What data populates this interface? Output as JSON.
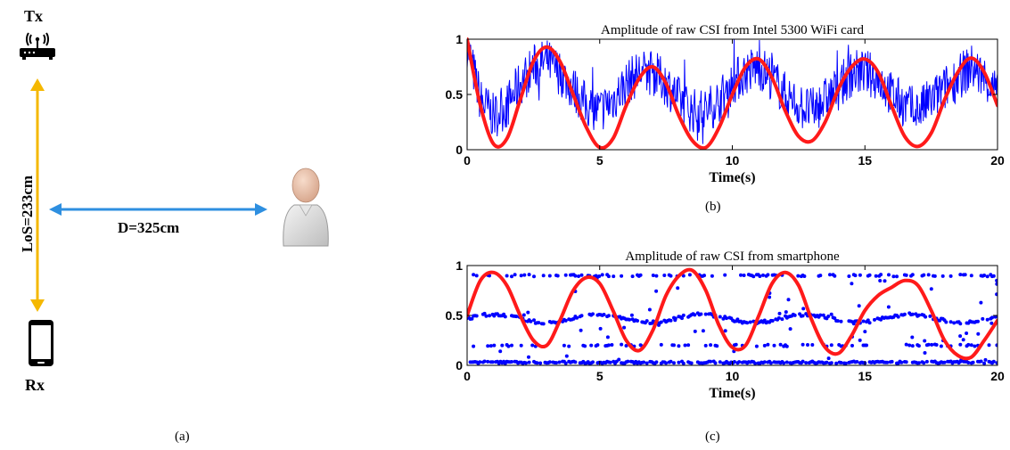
{
  "diagram": {
    "tx_label": "Tx",
    "rx_label": "Rx",
    "los_label": "LoS=233cm",
    "d_label": "D=325cm",
    "caption": "(a)",
    "arrow_color_vertical": "#f5b800",
    "arrow_color_horizontal": "#2e8fe0",
    "icons": [
      "router-icon",
      "smartphone-icon",
      "person-icon"
    ]
  },
  "chart_data": [
    {
      "type": "line",
      "title": "Amplitude of raw CSI from Intel 5300 WiFi card",
      "xlabel": "Time(s)",
      "ylabel": "",
      "xlim": [
        0,
        20
      ],
      "ylim": [
        0,
        1
      ],
      "xticks": [
        0,
        5,
        10,
        15,
        20
      ],
      "yticks": [
        0,
        0.5,
        1
      ],
      "ytick_labels": [
        "0",
        "0.5",
        "1"
      ],
      "caption": "(b)",
      "series": [
        {
          "style": "noisy-line",
          "color": "#0000ff",
          "x": [
            0,
            0.5,
            1.0,
            1.5,
            2.0,
            2.5,
            3.0,
            3.5,
            4.0,
            4.5,
            5.0,
            5.5,
            6.0,
            6.5,
            7.0,
            7.5,
            8.0,
            8.5,
            9.0,
            9.5,
            10.0,
            10.5,
            11.0,
            11.5,
            12.0,
            12.5,
            13.0,
            13.5,
            14.0,
            14.5,
            15.0,
            15.5,
            16.0,
            16.5,
            17.0,
            17.5,
            18.0,
            18.5,
            19.0,
            19.5,
            20.0
          ],
          "values": [
            0.95,
            0.45,
            0.3,
            0.4,
            0.6,
            0.75,
            0.8,
            0.7,
            0.55,
            0.4,
            0.35,
            0.45,
            0.6,
            0.7,
            0.7,
            0.6,
            0.45,
            0.35,
            0.35,
            0.45,
            0.6,
            0.7,
            0.75,
            0.65,
            0.5,
            0.4,
            0.35,
            0.45,
            0.55,
            0.7,
            0.7,
            0.65,
            0.5,
            0.4,
            0.35,
            0.45,
            0.55,
            0.65,
            0.75,
            0.65,
            0.5
          ]
        },
        {
          "style": "smooth-line",
          "color": "#ff1a1a",
          "x": [
            0,
            0.5,
            1.0,
            1.5,
            2.0,
            2.5,
            3.0,
            3.5,
            4.0,
            4.5,
            5.0,
            5.5,
            6.0,
            6.5,
            7.0,
            7.5,
            8.0,
            8.5,
            9.0,
            9.5,
            10.0,
            10.5,
            11.0,
            11.5,
            12.0,
            12.5,
            13.0,
            13.5,
            14.0,
            14.5,
            15.0,
            15.5,
            16.0,
            16.5,
            17.0,
            17.5,
            18.0,
            18.5,
            19.0,
            19.5,
            20.0
          ],
          "values": [
            1.0,
            0.4,
            0.05,
            0.1,
            0.45,
            0.8,
            0.93,
            0.8,
            0.5,
            0.2,
            0.02,
            0.1,
            0.4,
            0.65,
            0.75,
            0.6,
            0.3,
            0.08,
            0.02,
            0.2,
            0.5,
            0.75,
            0.82,
            0.65,
            0.35,
            0.12,
            0.08,
            0.25,
            0.55,
            0.75,
            0.82,
            0.7,
            0.4,
            0.12,
            0.03,
            0.15,
            0.45,
            0.7,
            0.83,
            0.7,
            0.4
          ]
        }
      ]
    },
    {
      "type": "scatter",
      "title": "Amplitude of raw CSI from smartphone",
      "xlabel": "Time(s)",
      "ylabel": "",
      "xlim": [
        0,
        20
      ],
      "ylim": [
        0,
        1
      ],
      "xticks": [
        0,
        5,
        10,
        15,
        20
      ],
      "yticks": [
        0,
        0.5,
        1
      ],
      "ytick_labels": [
        "0",
        "0.5",
        "1"
      ],
      "caption": "(c)",
      "series": [
        {
          "style": "dots",
          "color": "#0000ff",
          "bands": [
            0.03,
            0.2,
            0.47,
            0.9
          ],
          "band_density": [
            0.75,
            0.25,
            0.75,
            0.35
          ],
          "mid_wave_amplitude": 0.04
        },
        {
          "style": "smooth-line",
          "color": "#ff1a1a",
          "x": [
            0,
            0.5,
            1.0,
            1.5,
            2.0,
            2.5,
            3.0,
            3.5,
            4.0,
            4.5,
            5.0,
            5.5,
            6.0,
            6.5,
            7.0,
            7.5,
            8.0,
            8.5,
            9.0,
            9.5,
            10.0,
            10.5,
            11.0,
            11.5,
            12.0,
            12.5,
            13.0,
            13.5,
            14.0,
            14.5,
            15.0,
            15.5,
            16.0,
            16.5,
            17.0,
            17.5,
            18.0,
            18.5,
            19.0,
            19.5,
            20.0
          ],
          "values": [
            0.5,
            0.85,
            0.93,
            0.8,
            0.5,
            0.25,
            0.2,
            0.45,
            0.75,
            0.88,
            0.82,
            0.55,
            0.25,
            0.15,
            0.35,
            0.7,
            0.9,
            0.95,
            0.75,
            0.4,
            0.18,
            0.2,
            0.5,
            0.82,
            0.93,
            0.8,
            0.45,
            0.18,
            0.12,
            0.3,
            0.55,
            0.7,
            0.78,
            0.85,
            0.8,
            0.55,
            0.25,
            0.1,
            0.08,
            0.25,
            0.45
          ]
        }
      ]
    }
  ]
}
